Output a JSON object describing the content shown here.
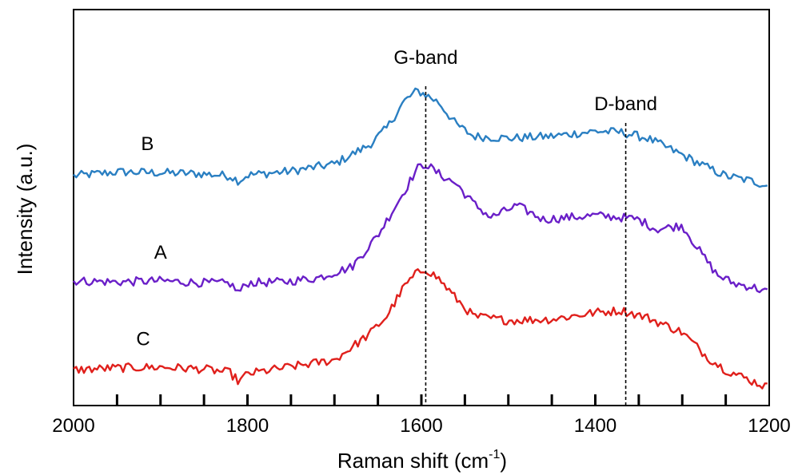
{
  "chart_data": {
    "type": "line",
    "xlabel_main": "Raman shift (cm",
    "xlabel_sup": "-1",
    "xlabel_end": ")",
    "ylabel": "Intensity (a.u.)",
    "xlim": [
      2000,
      1200
    ],
    "x_reversed": true,
    "ylim": [
      0,
      1
    ],
    "y_ticks_shown": false,
    "grid": false,
    "x_ticks": [
      {
        "value": 2000,
        "label": "2000"
      },
      {
        "value": 1800,
        "label": "1800"
      },
      {
        "value": 1600,
        "label": "1600"
      },
      {
        "value": 1400,
        "label": "1400"
      },
      {
        "value": 1200,
        "label": "1200"
      }
    ],
    "minor_ticks": [
      1950,
      1900,
      1850,
      1800,
      1750,
      1700,
      1650,
      1600,
      1550,
      1500,
      1450,
      1400,
      1350,
      1300,
      1250
    ],
    "annotations": [
      {
        "label": "G-band",
        "x": 1595
      },
      {
        "label": "D-band",
        "x": 1365
      }
    ],
    "series": [
      {
        "name": "B",
        "color": "#2a7fc2",
        "label_x": 1915,
        "x": [
          2000,
          1950,
          1900,
          1850,
          1820,
          1810,
          1800,
          1750,
          1700,
          1660,
          1640,
          1620,
          1605,
          1595,
          1580,
          1560,
          1540,
          1500,
          1450,
          1400,
          1370,
          1340,
          1300,
          1270,
          1250,
          1220,
          1200
        ],
        "y": [
          0.58,
          0.59,
          0.588,
          0.585,
          0.58,
          0.567,
          0.582,
          0.592,
          0.61,
          0.658,
          0.7,
          0.768,
          0.795,
          0.785,
          0.765,
          0.71,
          0.68,
          0.675,
          0.68,
          0.693,
          0.69,
          0.675,
          0.633,
          0.6,
          0.58,
          0.567,
          0.555
        ]
      },
      {
        "name": "A",
        "color": "#6a1fc8",
        "label_x": 1900,
        "x": [
          2000,
          1950,
          1900,
          1850,
          1820,
          1810,
          1800,
          1760,
          1720,
          1680,
          1650,
          1620,
          1605,
          1595,
          1580,
          1560,
          1540,
          1520,
          1490,
          1460,
          1430,
          1400,
          1370,
          1350,
          1330,
          1300,
          1280,
          1260,
          1240,
          1220,
          1200
        ],
        "y": [
          0.315,
          0.312,
          0.315,
          0.31,
          0.308,
          0.285,
          0.31,
          0.312,
          0.322,
          0.35,
          0.43,
          0.54,
          0.598,
          0.61,
          0.585,
          0.56,
          0.51,
          0.475,
          0.505,
          0.47,
          0.475,
          0.48,
          0.475,
          0.47,
          0.445,
          0.455,
          0.39,
          0.33,
          0.308,
          0.3,
          0.285
        ]
      },
      {
        "name": "C",
        "color": "#e0201c",
        "label_x": 1920,
        "x": [
          2000,
          1950,
          1900,
          1850,
          1820,
          1810,
          1800,
          1750,
          1700,
          1660,
          1640,
          1620,
          1605,
          1595,
          1580,
          1560,
          1540,
          1500,
          1450,
          1400,
          1370,
          1340,
          1300,
          1270,
          1250,
          1220,
          1200
        ],
        "y": [
          0.09,
          0.095,
          0.097,
          0.092,
          0.083,
          0.06,
          0.08,
          0.098,
          0.115,
          0.18,
          0.225,
          0.3,
          0.335,
          0.345,
          0.32,
          0.27,
          0.225,
          0.215,
          0.218,
          0.235,
          0.24,
          0.222,
          0.185,
          0.12,
          0.09,
          0.062,
          0.045
        ]
      }
    ]
  }
}
